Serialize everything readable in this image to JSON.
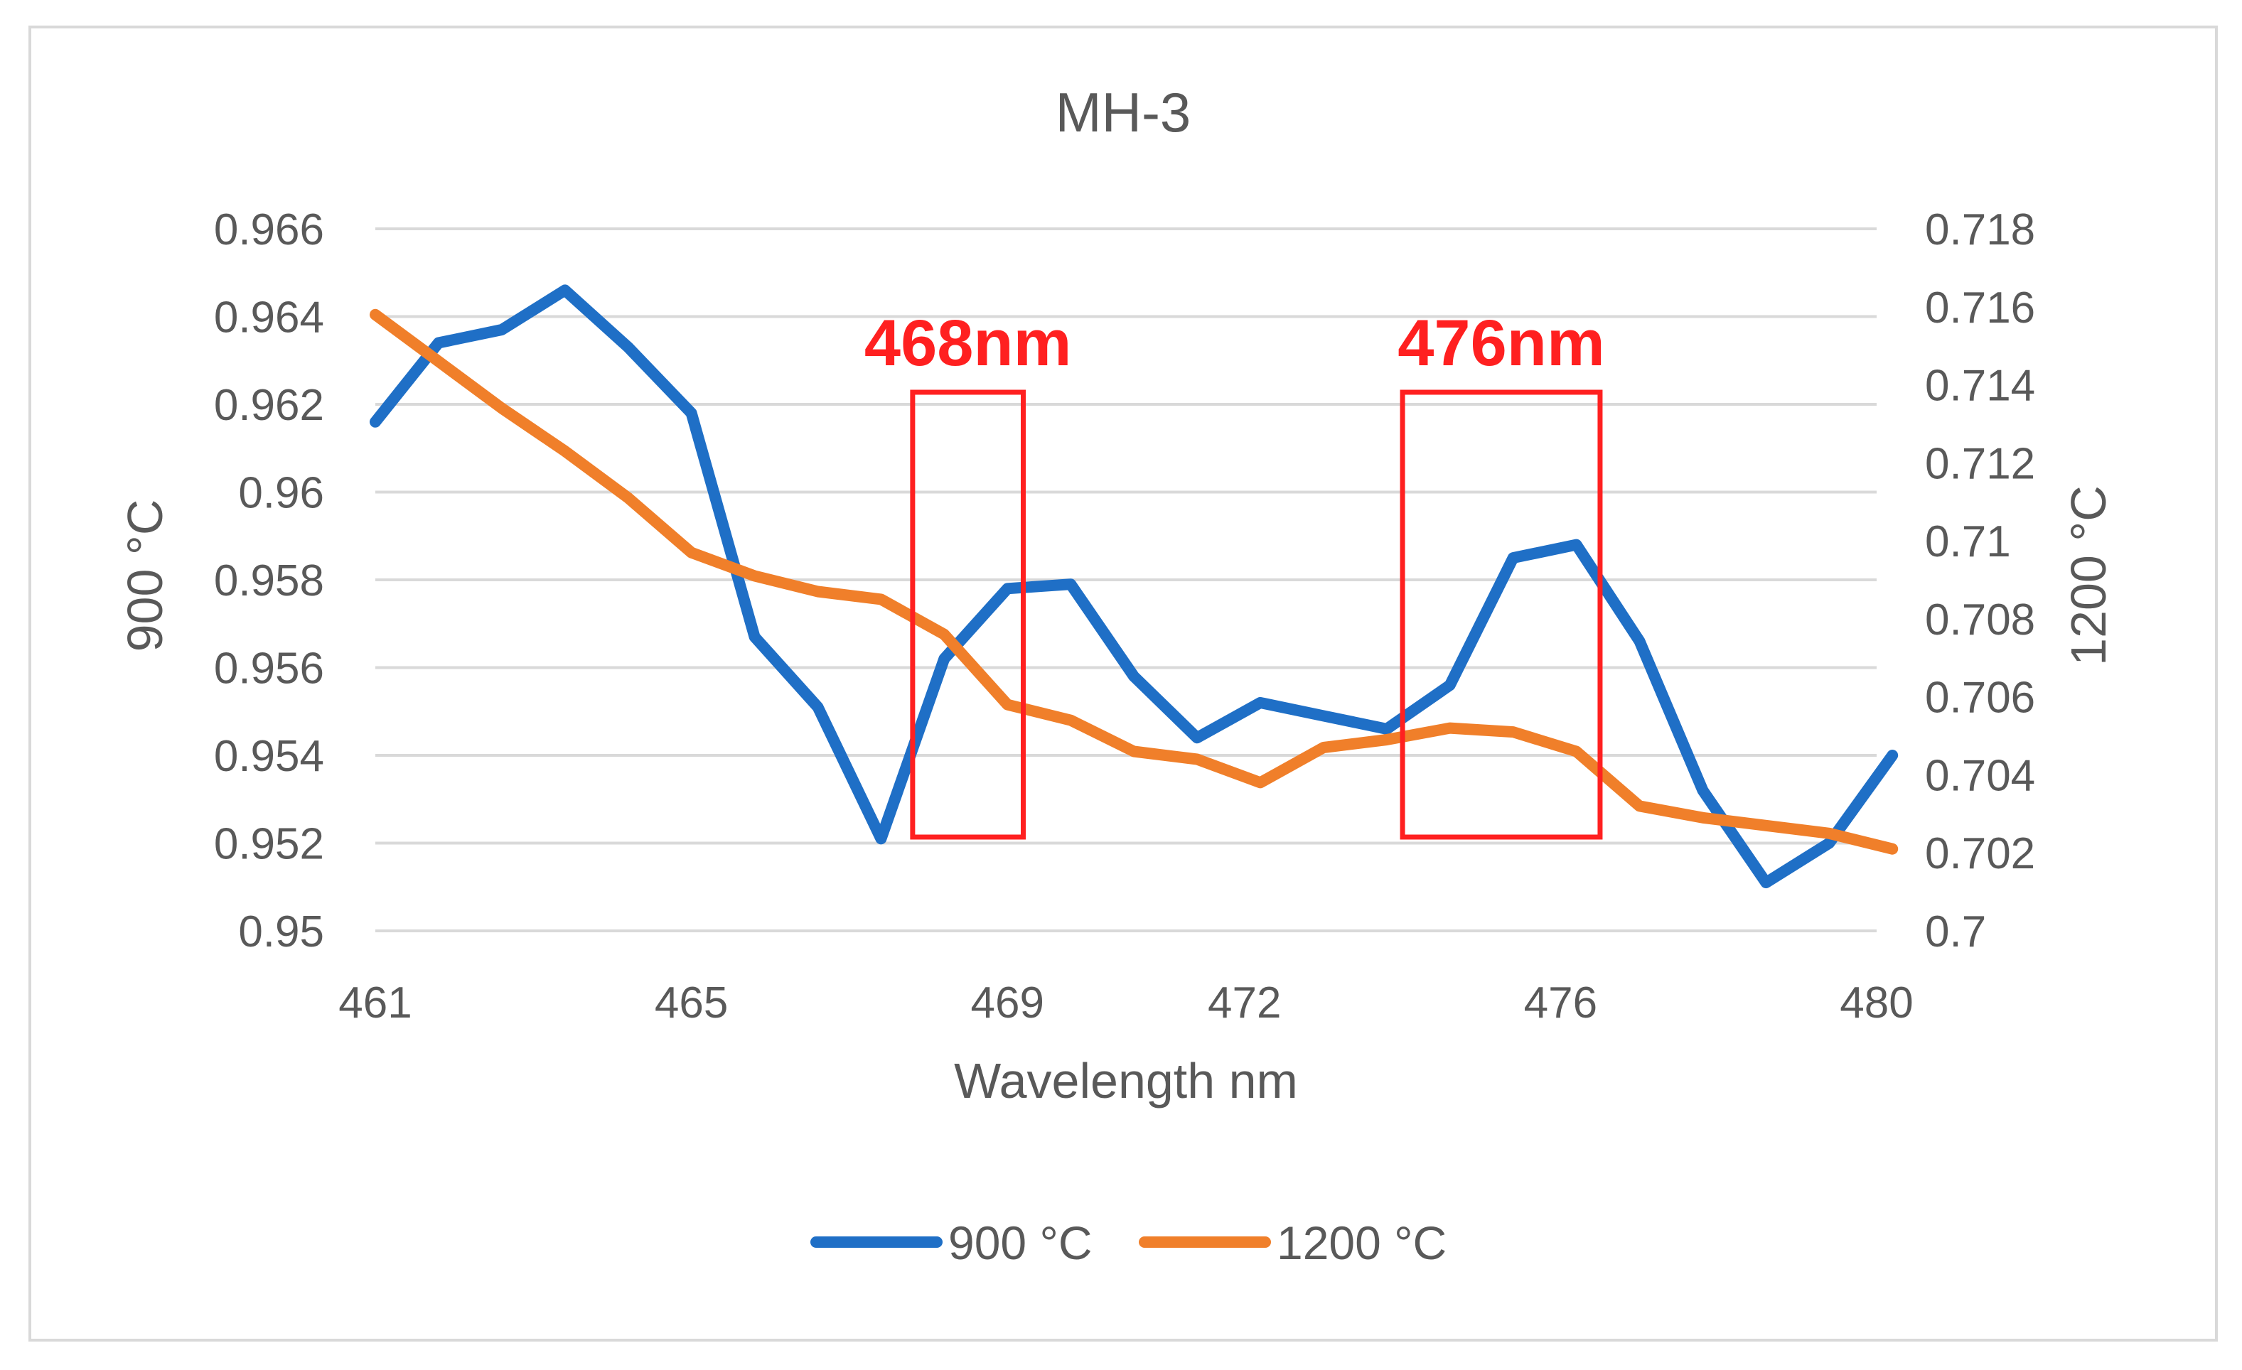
{
  "chart_data": {
    "type": "line",
    "title": "MH-3",
    "xlabel": "Wavelength nm",
    "ylabel_left": "900 °C",
    "ylabel_right": "1200 °C",
    "x": [
      461,
      461.8,
      462.6,
      463.4,
      464.2,
      465,
      465.8,
      466.6,
      467.4,
      468.2,
      469,
      469.8,
      470.6,
      471.4,
      472.2,
      473,
      473.8,
      474.6,
      475.4,
      476.2,
      477,
      477.8,
      478.6,
      479.4,
      480.2
    ],
    "x_tick_labels": [
      "461",
      "465",
      "469",
      "472",
      "476",
      "480"
    ],
    "xlim": [
      461,
      480
    ],
    "ylim_left": [
      0.95,
      0.966
    ],
    "ylim_right": [
      0.7,
      0.718
    ],
    "y_ticks_left": [
      "0.95",
      "0.952",
      "0.954",
      "0.956",
      "0.958",
      "0.96",
      "0.962",
      "0.964",
      "0.966"
    ],
    "y_ticks_right": [
      "0.7",
      "0.702",
      "0.704",
      "0.706",
      "0.708",
      "0.71",
      "0.712",
      "0.714",
      "0.716",
      "0.718"
    ],
    "series": [
      {
        "name": "900 °C",
        "axis": "left",
        "color": "#1f6fc6",
        "values": [
          0.9616,
          0.9634,
          0.9637,
          0.9646,
          0.9633,
          0.9618,
          0.9567,
          0.9551,
          0.9521,
          0.9562,
          0.9578,
          0.9579,
          0.9558,
          0.9544,
          0.9552,
          0.9549,
          0.9546,
          0.9556,
          0.9585,
          0.9588,
          0.9566,
          0.9532,
          0.9511,
          0.952,
          0.954
        ]
      },
      {
        "name": "1200 °C",
        "axis": "right",
        "color": "#f07f2a",
        "values": [
          0.7158,
          0.7146,
          0.7134,
          0.7123,
          0.7111,
          0.7097,
          0.7091,
          0.7087,
          0.7085,
          0.7076,
          0.7058,
          0.7054,
          0.7046,
          0.7044,
          0.7038,
          0.7047,
          0.7049,
          0.7052,
          0.7051,
          0.7046,
          0.7032,
          0.7029,
          0.7027,
          0.7025,
          0.7021
        ]
      }
    ],
    "annotations": [
      {
        "label": "468nm",
        "x_range": [
          467.8,
          469.2
        ],
        "color": "#ff2020"
      },
      {
        "label": "476nm",
        "x_range": [
          474.0,
          476.5
        ],
        "color": "#ff2020"
      }
    ],
    "legend_position": "bottom",
    "grid": true
  }
}
